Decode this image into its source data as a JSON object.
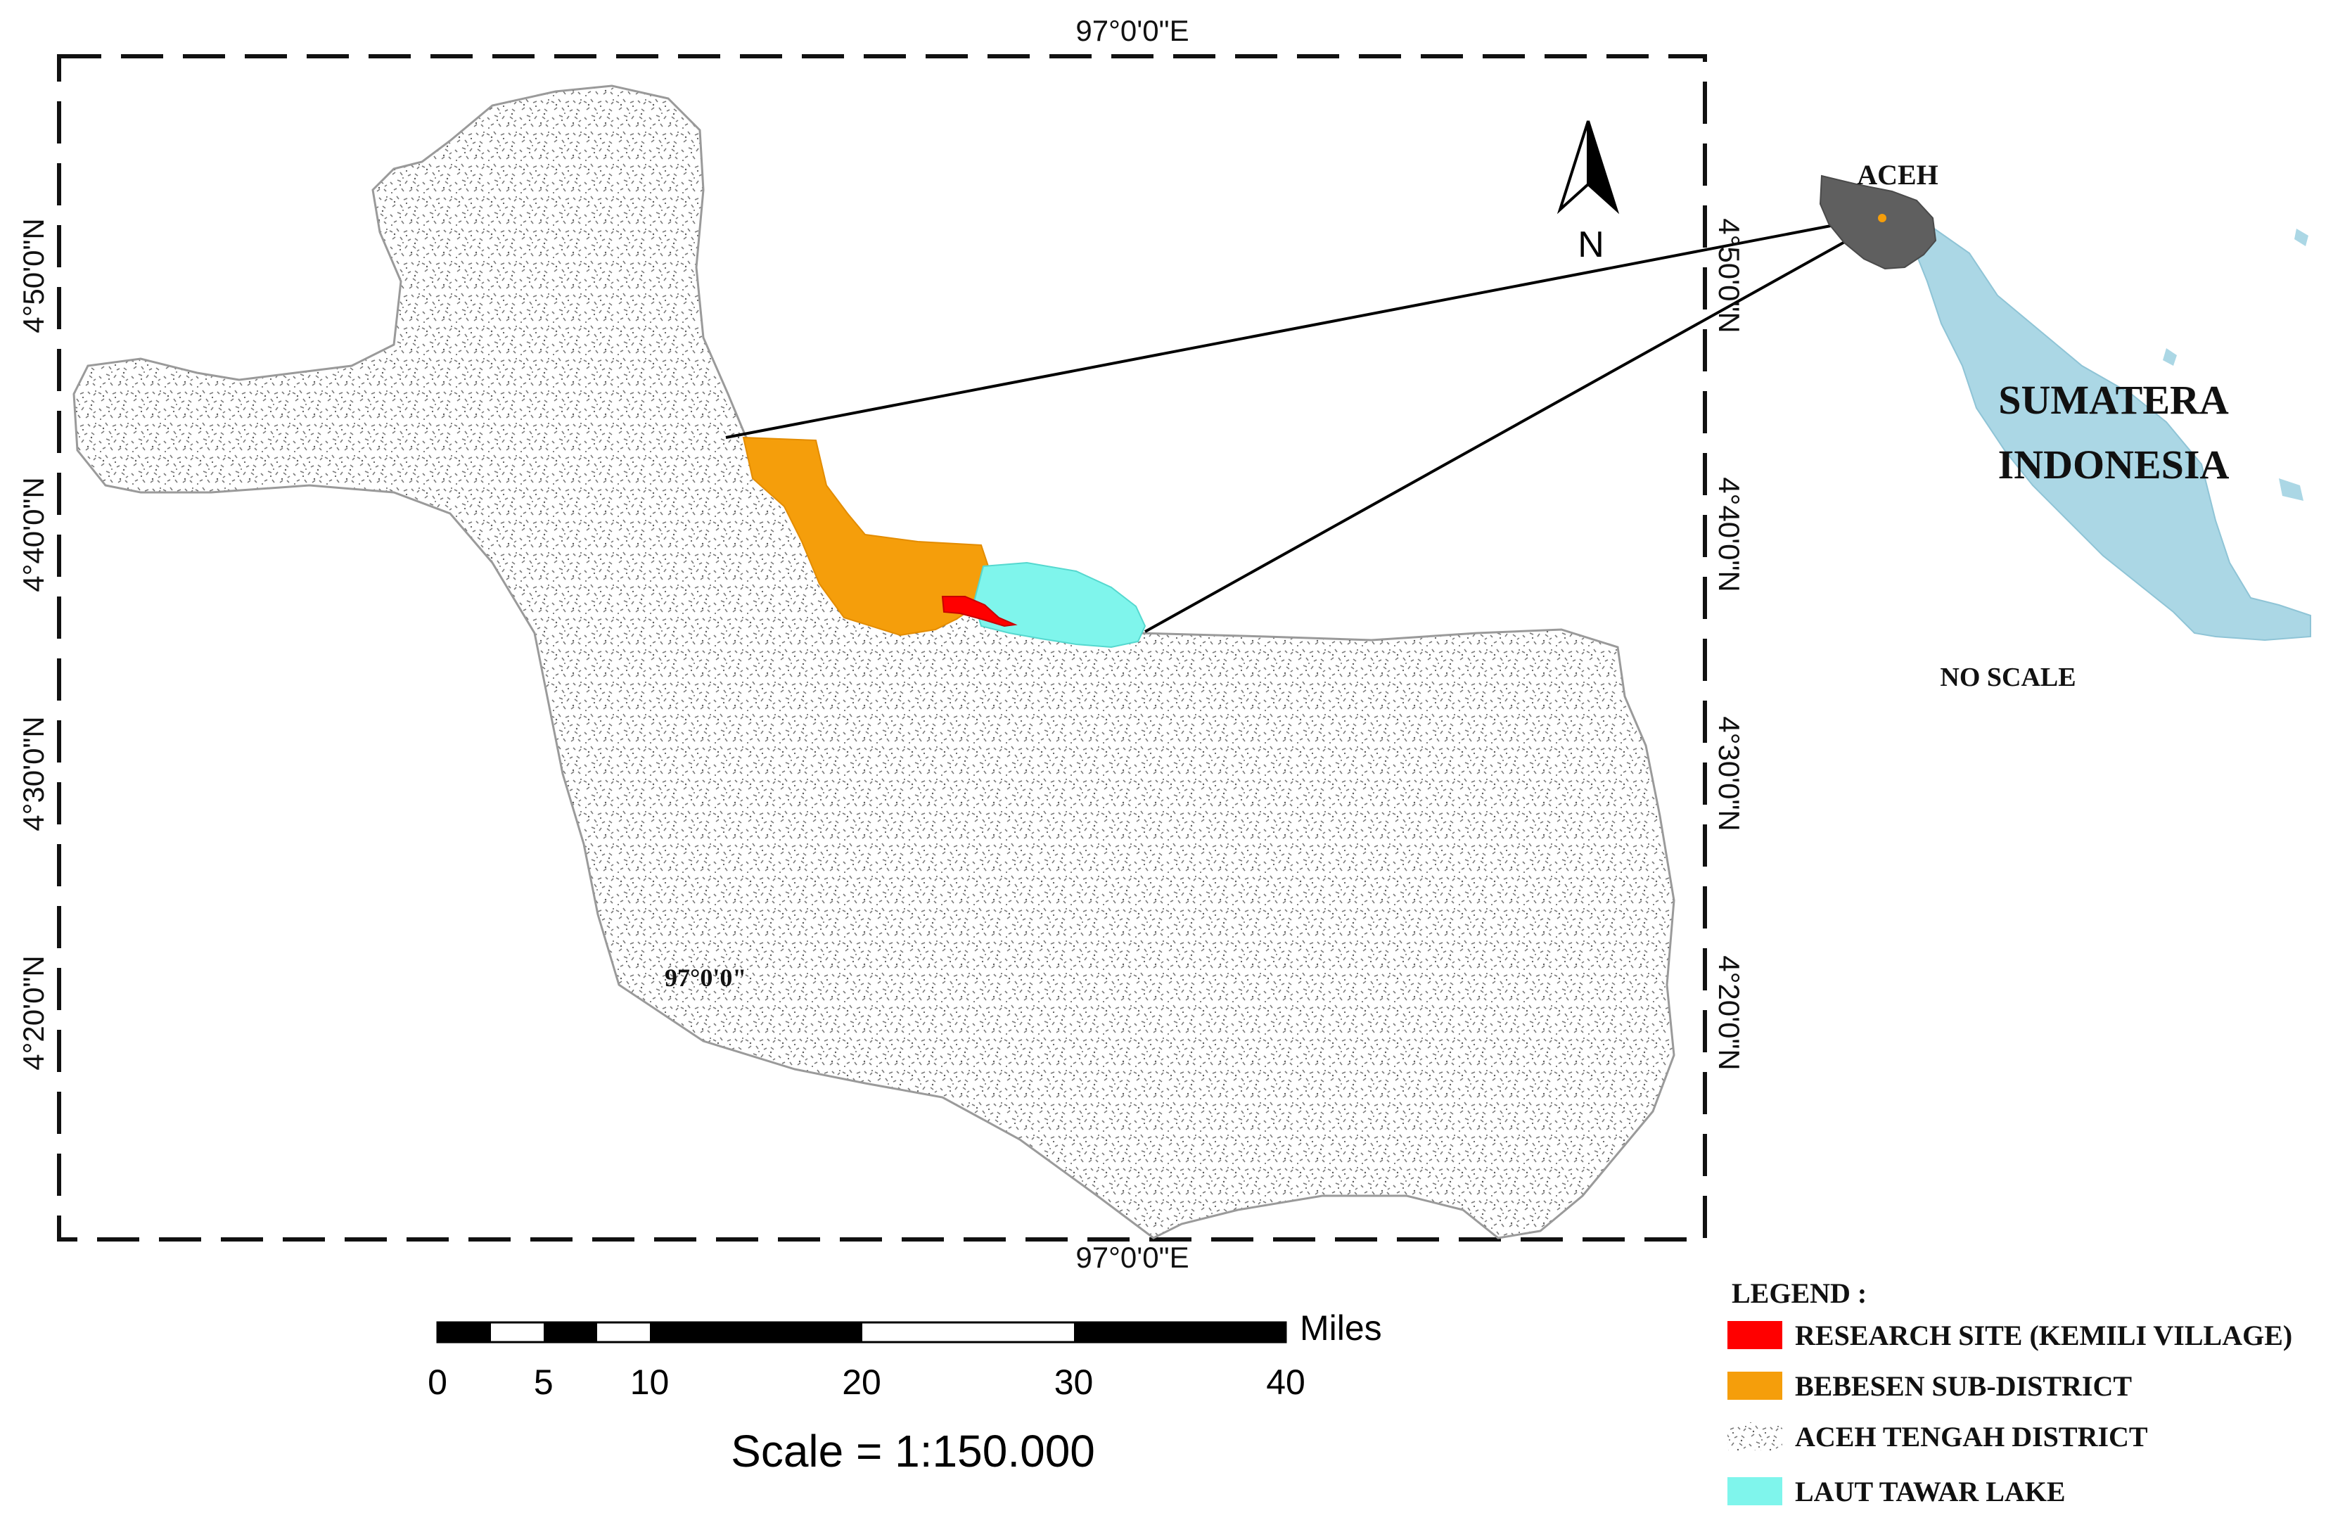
{
  "coordinates": {
    "top_longitude": "97°0'0\"E",
    "bottom_longitude": "97°0'0\"E",
    "left_latitudes": [
      "4°50'0\"N",
      "4°40'0\"N",
      "4°30'0\"N",
      "4°20'0\"N"
    ],
    "right_latitudes": [
      "4°50'0\"N",
      "4°40'0\"N",
      "4°30'0\"N",
      "4°20'0\"N"
    ],
    "inner_longitude": "97°0'0\""
  },
  "north_arrow": {
    "label": "N"
  },
  "inset": {
    "province_label": "ACEH",
    "island_label": "SUMATERA",
    "country_label": "INDONESIA",
    "scale_note": "NO SCALE"
  },
  "scale_bar": {
    "unit": "Miles",
    "ticks": [
      "0",
      "5",
      "10",
      "20",
      "30",
      "40"
    ],
    "tick_values": [
      0,
      5,
      10,
      20,
      30,
      40
    ],
    "scale_text": "Scale = 1:150.000"
  },
  "legend": {
    "title": "LEGEND :",
    "items": [
      {
        "label": "RESEARCH SITE (KEMILI VILLAGE)",
        "color": "#ff0000",
        "pattern": "solid"
      },
      {
        "label": "BEBESEN SUB-DISTRICT",
        "color": "#f59e0b",
        "pattern": "solid"
      },
      {
        "label": "ACEH TENGAH DISTRICT",
        "color": "#9a9a9a",
        "pattern": "speckle"
      },
      {
        "label": "LAUT TAWAR LAKE",
        "color": "#7ff5ec",
        "pattern": "solid"
      }
    ]
  },
  "colors": {
    "research_site": "#ff0000",
    "bebesen": "#f59e0b",
    "lake": "#7ff5ec",
    "aceh_province": "#5f5f5f",
    "sumatera": "#abd7e5",
    "district_texture": "#8a8a8a",
    "frame": "#111111"
  }
}
